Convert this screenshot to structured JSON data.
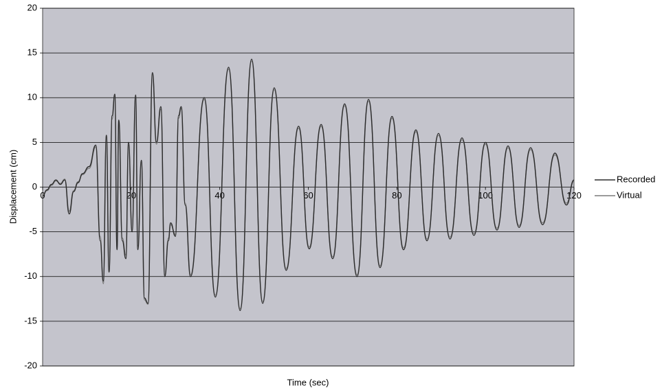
{
  "chart_data": {
    "type": "line",
    "xlabel": "Time (sec)",
    "ylabel": "Displacement (cm)",
    "x": [
      0,
      1,
      2,
      3,
      4,
      5,
      6,
      7,
      8,
      9,
      10.5,
      12,
      13,
      13.7,
      14.4,
      15,
      15.7,
      16.3,
      16.8,
      17.2,
      18,
      18.8,
      19.4,
      20.2,
      21,
      21.5,
      22.3,
      23,
      23.8,
      24.8,
      25.7,
      26.7,
      27.6,
      28.4,
      28.9,
      30,
      30.7,
      31.3,
      32.2,
      33.4,
      36.5,
      39,
      42,
      44.6,
      47.2,
      49.7,
      52.3,
      55,
      57.8,
      60.2,
      62.9,
      65.5,
      68.2,
      71,
      73.6,
      76.2,
      78.9,
      81.5,
      84.3,
      86.8,
      89.4,
      92,
      94.7,
      97.4,
      100,
      102.6,
      105.1,
      107.6,
      110.2,
      112.9,
      115.7,
      118.3,
      120
    ],
    "series": [
      {
        "name": "Recorded",
        "color": "#2b2b2b",
        "values": [
          -1,
          -0.3,
          0.3,
          0.8,
          0.3,
          0.8,
          -3,
          -0.5,
          0.5,
          1.5,
          2.3,
          4.7,
          -6,
          -10.5,
          5.8,
          -9.5,
          8,
          10.4,
          -7,
          7.5,
          -6,
          -8,
          5,
          -5,
          10.3,
          -7,
          3,
          -12.4,
          -13,
          12.8,
          5,
          9,
          -10,
          -6,
          -4,
          -5.5,
          8,
          9,
          -2,
          -10,
          10,
          -12.3,
          13.4,
          -13.8,
          14.3,
          -13,
          11.1,
          -9.3,
          6.8,
          -6.9,
          7,
          -8,
          9.3,
          -10,
          9.8,
          -9,
          7.9,
          -7,
          6.4,
          -6,
          6,
          -5.8,
          5.5,
          -5.4,
          5,
          -4.8,
          4.6,
          -4.5,
          4.4,
          -4.2,
          3.8,
          -2,
          0.8
        ]
      },
      {
        "name": "Virtual",
        "color": "#7a7a7a",
        "values": [
          -0.8,
          -0.4,
          0.2,
          0.7,
          0.4,
          0.9,
          -2.7,
          -0.4,
          0.6,
          1.4,
          2.1,
          4.5,
          -5.5,
          -10.8,
          5.6,
          -9.3,
          7.6,
          10.2,
          -6.8,
          7.2,
          -5.7,
          -7.6,
          4.7,
          -4.8,
          10.1,
          -6.6,
          2.8,
          -12.6,
          -13.1,
          12.6,
          4.8,
          8.7,
          -9.8,
          -5.7,
          -4.2,
          -5.3,
          7.7,
          8.8,
          -1.8,
          -9.8,
          9.8,
          -12.1,
          13.2,
          -13.6,
          14.1,
          -12.8,
          10.9,
          -9.1,
          6.6,
          -6.7,
          6.8,
          -7.8,
          9.1,
          -9.8,
          9.6,
          -8.8,
          7.7,
          -6.8,
          6.2,
          -5.8,
          5.8,
          -5.6,
          5.3,
          -5.2,
          4.8,
          -4.6,
          4.4,
          -4.3,
          4.2,
          -4,
          3.6,
          -1.8,
          0.7
        ]
      }
    ],
    "xlim": [
      0,
      120
    ],
    "xticks": [
      0,
      20,
      40,
      60,
      80,
      100,
      120
    ],
    "ylim": [
      -20,
      20
    ],
    "yticks": [
      -20,
      -15,
      -10,
      -5,
      0,
      5,
      10,
      15,
      20
    ],
    "grid": true,
    "legend": "right"
  }
}
